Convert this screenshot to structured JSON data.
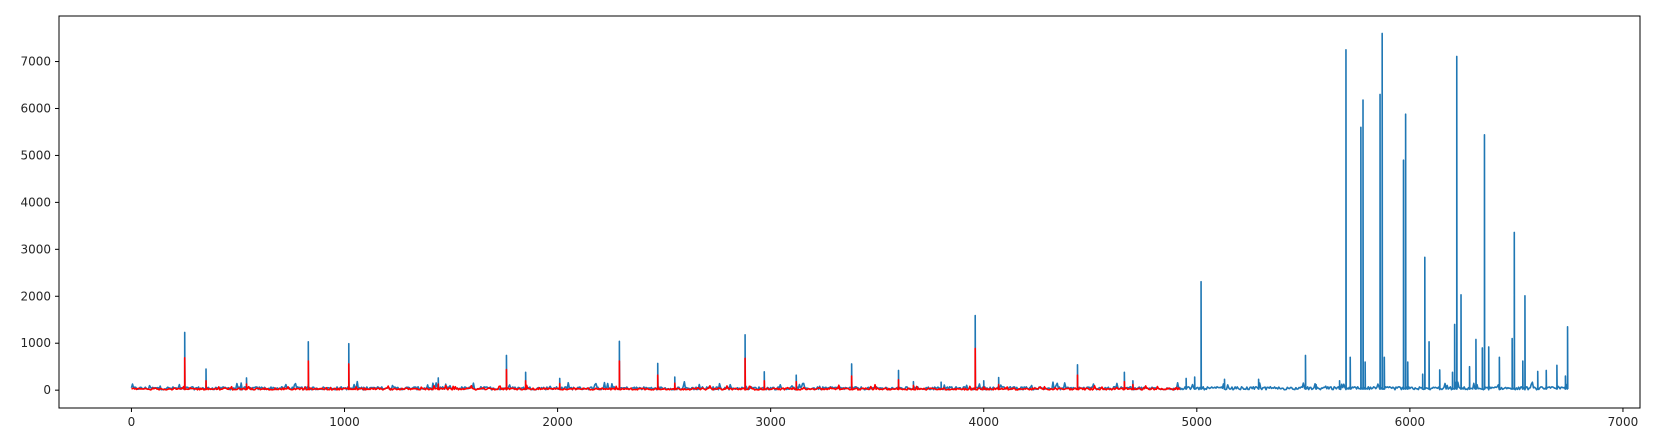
{
  "chart_data": {
    "type": "line",
    "title": "",
    "xlabel": "",
    "ylabel": "",
    "xlim": [
      -340,
      7080
    ],
    "ylim": [
      -380,
      7970
    ],
    "xticks": [
      0,
      1000,
      2000,
      3000,
      4000,
      5000,
      6000,
      7000
    ],
    "yticks": [
      0,
      1000,
      2000,
      3000,
      4000,
      5000,
      6000,
      7000
    ],
    "legend": "none",
    "grid": false,
    "series": [
      {
        "color": "#1f77b4",
        "baseline_x_range": [
          0,
          6740
        ],
        "baseline_level": 40,
        "spikes": [
          [
            250,
            1230
          ],
          [
            350,
            450
          ],
          [
            540,
            260
          ],
          [
            830,
            1030
          ],
          [
            1020,
            990
          ],
          [
            1440,
            260
          ],
          [
            1760,
            740
          ],
          [
            1850,
            380
          ],
          [
            2010,
            250
          ],
          [
            2290,
            1040
          ],
          [
            2470,
            570
          ],
          [
            2550,
            280
          ],
          [
            2880,
            1180
          ],
          [
            2970,
            390
          ],
          [
            3120,
            320
          ],
          [
            3380,
            560
          ],
          [
            3600,
            420
          ],
          [
            3670,
            180
          ],
          [
            3800,
            170
          ],
          [
            3960,
            1590
          ],
          [
            4000,
            200
          ],
          [
            4070,
            270
          ],
          [
            4440,
            540
          ],
          [
            4660,
            380
          ],
          [
            4700,
            200
          ],
          [
            4950,
            250
          ],
          [
            4990,
            280
          ],
          [
            5020,
            2310
          ],
          [
            5130,
            230
          ],
          [
            5290,
            230
          ],
          [
            5510,
            740
          ],
          [
            5560,
            110
          ],
          [
            5670,
            200
          ],
          [
            5700,
            7250
          ],
          [
            5720,
            700
          ],
          [
            5770,
            5600
          ],
          [
            5780,
            6180
          ],
          [
            5790,
            600
          ],
          [
            5860,
            6300
          ],
          [
            5870,
            7600
          ],
          [
            5880,
            700
          ],
          [
            5970,
            4900
          ],
          [
            5980,
            5880
          ],
          [
            5990,
            600
          ],
          [
            6060,
            340
          ],
          [
            6070,
            2830
          ],
          [
            6090,
            1030
          ],
          [
            6140,
            430
          ],
          [
            6200,
            380
          ],
          [
            6210,
            1400
          ],
          [
            6220,
            7110
          ],
          [
            6240,
            2030
          ],
          [
            6280,
            500
          ],
          [
            6310,
            1080
          ],
          [
            6340,
            900
          ],
          [
            6350,
            5440
          ],
          [
            6370,
            920
          ],
          [
            6420,
            700
          ],
          [
            6480,
            1100
          ],
          [
            6490,
            3360
          ],
          [
            6530,
            620
          ],
          [
            6540,
            2010
          ],
          [
            6600,
            400
          ],
          [
            6640,
            420
          ],
          [
            6690,
            530
          ],
          [
            6730,
            300
          ],
          [
            6740,
            1350
          ]
        ]
      },
      {
        "color": "#ff0000",
        "baseline_x_range": [
          0,
          4920
        ],
        "baseline_level": 25,
        "spikes": [
          [
            250,
            690
          ],
          [
            350,
            200
          ],
          [
            540,
            130
          ],
          [
            830,
            620
          ],
          [
            1020,
            560
          ],
          [
            1440,
            130
          ],
          [
            1760,
            440
          ],
          [
            1850,
            200
          ],
          [
            2010,
            140
          ],
          [
            2290,
            620
          ],
          [
            2470,
            320
          ],
          [
            2550,
            150
          ],
          [
            2880,
            680
          ],
          [
            2970,
            200
          ],
          [
            3120,
            180
          ],
          [
            3380,
            300
          ],
          [
            3600,
            220
          ],
          [
            3670,
            100
          ],
          [
            3960,
            890
          ],
          [
            4070,
            120
          ],
          [
            4440,
            320
          ],
          [
            4660,
            180
          ],
          [
            4700,
            120
          ]
        ]
      }
    ]
  }
}
